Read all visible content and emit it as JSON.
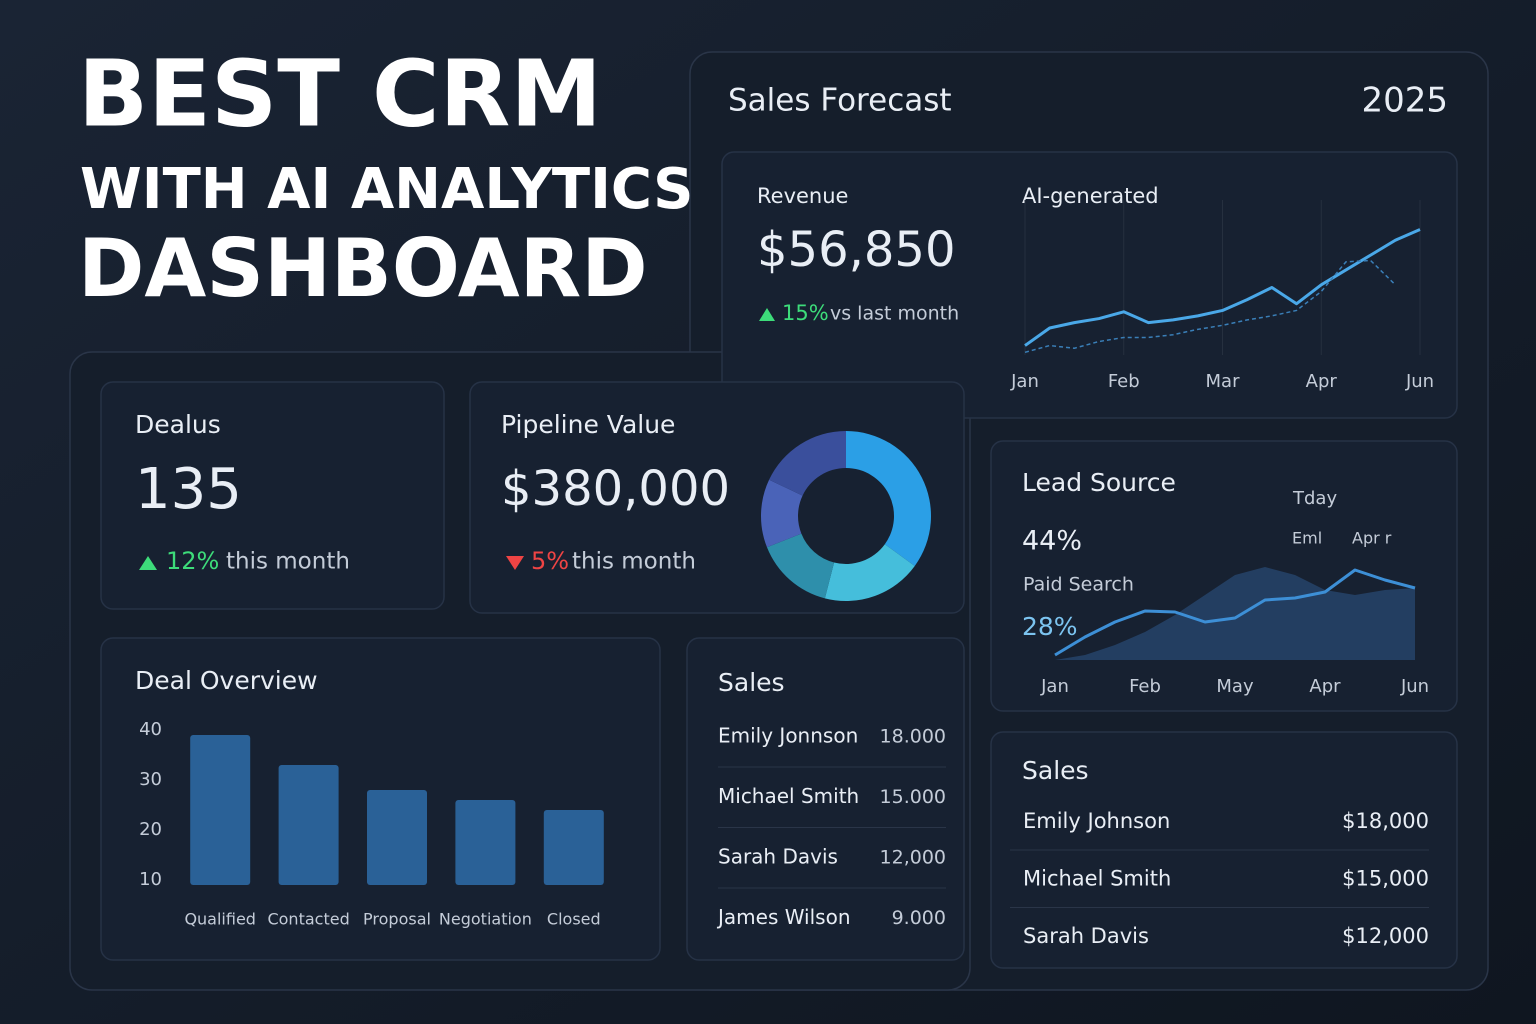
{
  "header": {
    "lines": [
      "BEST CRM",
      "WITH AI ANALYTICS",
      "DASHBOARD"
    ]
  },
  "forecast": {
    "title": "Sales Forecast",
    "year": "2025",
    "metric_label": "Revenue",
    "metric_value": "$56,850",
    "change": "15%",
    "change_note": "vs last month",
    "chart_label": "AI-generated"
  },
  "deals": {
    "title": "Dealus",
    "value": "135",
    "change": "12%",
    "change_note": "this month"
  },
  "pipeline": {
    "title": "Pipeline Value",
    "value": "$380,000",
    "change": "5%",
    "change_note": "this month"
  },
  "lead_source": {
    "title": "Lead Source",
    "tag1": "Tday",
    "value1": "44%",
    "tag2": "Eml",
    "tag3": "Apr r",
    "label2": "Paid Search",
    "value2": "28%"
  },
  "deal_overview": {
    "title": "Deal Overview"
  },
  "sales_mid": {
    "title": "Sales",
    "rows": [
      [
        "Emily Jonnson",
        "18.000"
      ],
      [
        "Michael Smith",
        "15.000"
      ],
      [
        "Sarah Davis",
        "12,000"
      ],
      [
        "James Wilson",
        "9.000"
      ]
    ]
  },
  "sales_right": {
    "title": "Sales",
    "rows": [
      [
        "Emily Johnson",
        "$18,000"
      ],
      [
        "Michael Smith",
        "$15,000"
      ],
      [
        "Sarah Davis",
        "$12,000"
      ]
    ]
  },
  "chart_data": [
    {
      "type": "line",
      "categories": [
        "Jan",
        null,
        null,
        null,
        "Feb",
        null,
        null,
        null,
        "Mar",
        null,
        null,
        null,
        "Apr",
        null,
        null,
        null,
        "Jun"
      ],
      "ylim": [
        0,
        100
      ],
      "series": [
        {
          "color": "#4aa8e8",
          "style": "solid",
          "values": [
            7,
            20,
            24,
            27,
            32,
            24,
            26,
            29,
            33,
            41,
            50,
            38,
            52,
            63,
            74,
            85,
            93
          ]
        },
        {
          "color": "#3a7fb8",
          "style": "dashed",
          "values": [
            2,
            7,
            5,
            10,
            13,
            13,
            15,
            19,
            22,
            26,
            29,
            33,
            47,
            69,
            70,
            52,
            null
          ]
        }
      ]
    },
    {
      "type": "pie",
      "values": [
        35,
        19,
        15,
        13,
        18
      ],
      "colors": [
        "#2b9fe6",
        "#45bedb",
        "#2e8fab",
        "#4a63b8",
        "#3a4f9c"
      ]
    },
    {
      "type": "area",
      "categories": [
        "Jan",
        null,
        null,
        "Feb",
        null,
        null,
        "May",
        null,
        null,
        "Apr",
        null,
        null,
        "Jun"
      ],
      "ylim": [
        0,
        100
      ],
      "series": [
        {
          "color": "#27466e",
          "style": "fill",
          "values": [
            0,
            5,
            15,
            28,
            45,
            65,
            85,
            93,
            85,
            70,
            65,
            70,
            72
          ]
        },
        {
          "color": "#3d8fd6",
          "style": "line",
          "values": [
            5,
            23,
            38,
            49,
            48,
            38,
            42,
            60,
            62,
            68,
            90,
            80,
            72
          ]
        }
      ]
    },
    {
      "type": "bar",
      "categories": [
        "Qualified",
        "Contacted",
        "Proposal",
        "Negotiation",
        "Closed"
      ],
      "values": [
        39,
        33,
        28,
        26,
        24
      ],
      "color": "#2a6197",
      "ylim": [
        9,
        40
      ],
      "yticks": [
        10,
        20,
        30,
        40
      ]
    }
  ]
}
